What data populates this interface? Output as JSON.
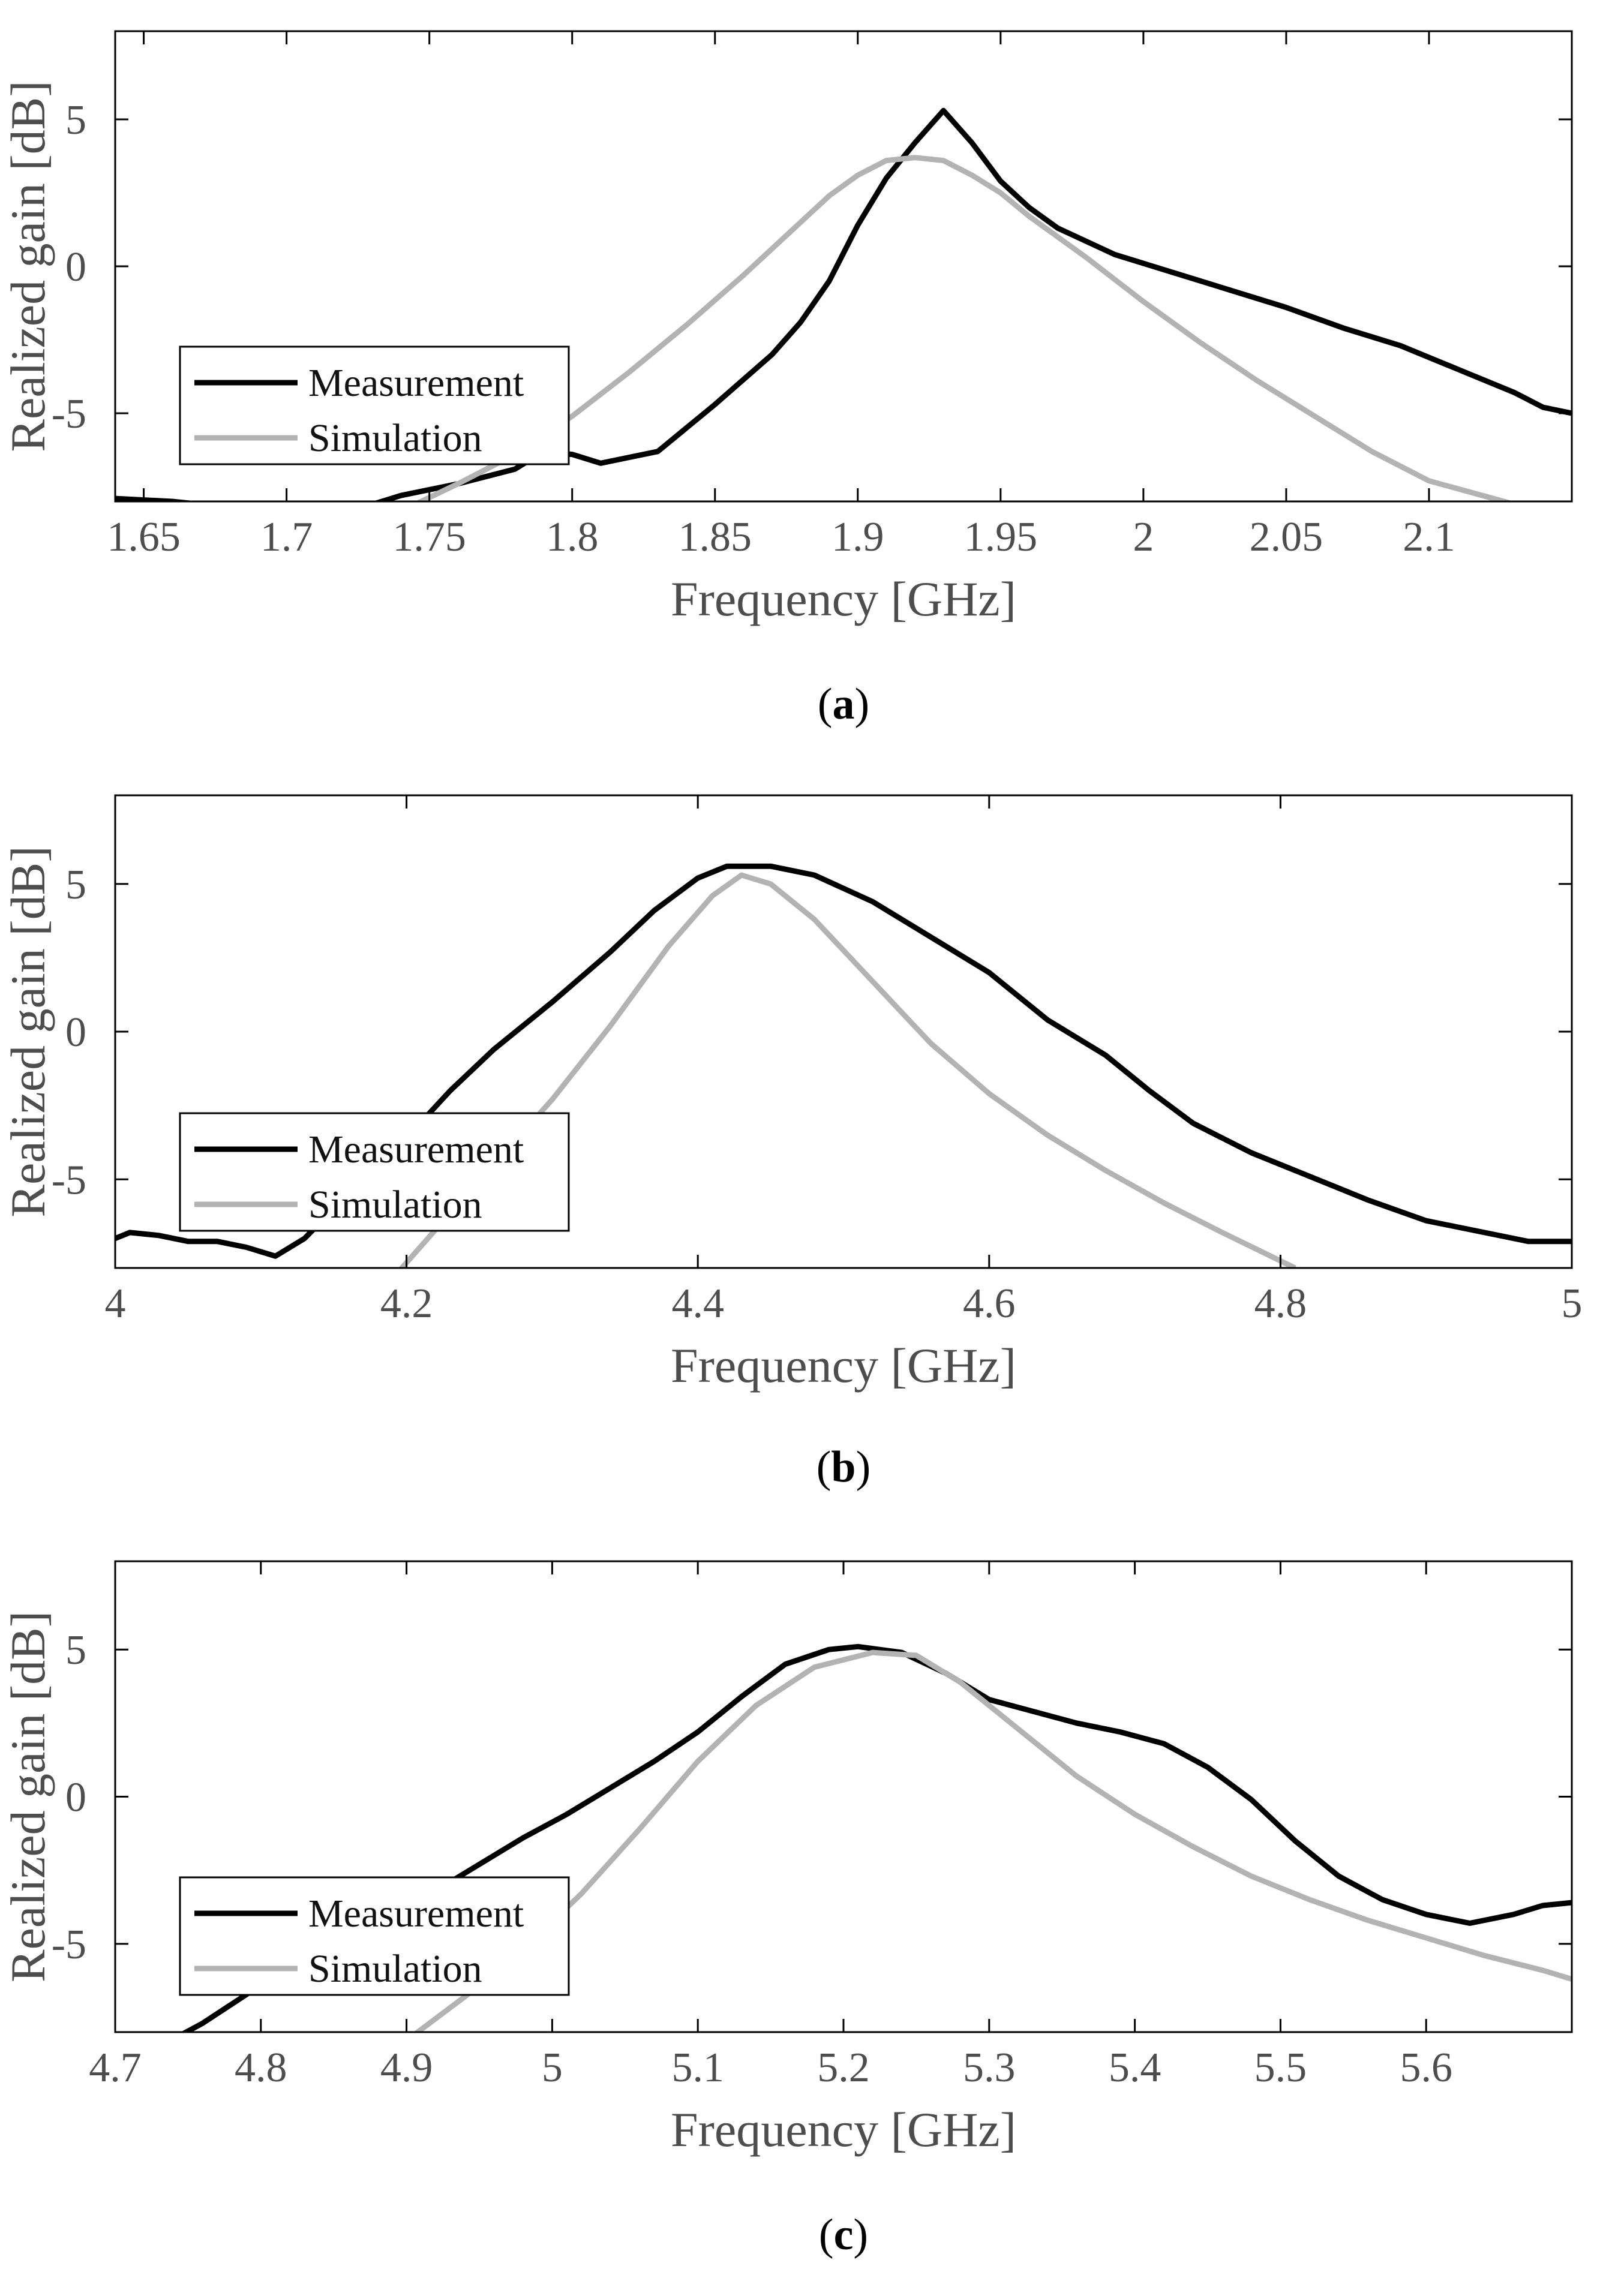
{
  "colors": {
    "measurement": "#000000",
    "simulation": "#b3b3b3",
    "axes": "#000000",
    "tick_text": "#4d4d4d"
  },
  "chart_data": [
    {
      "type": "line",
      "caption_open": "(",
      "caption_letter": "a",
      "caption_close": ")",
      "xlabel": "Frequency [GHz]",
      "ylabel": "Realized gain [dB]",
      "xlim": [
        1.64,
        2.15
      ],
      "ylim": [
        -8,
        8
      ],
      "xticks": [
        1.65,
        1.7,
        1.75,
        1.8,
        1.85,
        1.9,
        1.95,
        2,
        2.05,
        2.1
      ],
      "xtick_labels": [
        "1.65",
        "1.7",
        "1.75",
        "1.8",
        "1.85",
        "1.9",
        "1.95",
        "2",
        "2.05",
        "2.1"
      ],
      "yticks": [
        -5,
        0,
        5
      ],
      "ytick_labels": [
        "-5",
        "0",
        "5"
      ],
      "legend": [
        "Measurement",
        "Simulation"
      ],
      "legend_position": "lower-left",
      "series": [
        {
          "name": "Measurement",
          "segments": [
            [
              [
                1.64,
                -7.9
              ],
              [
                1.66,
                -8.0
              ],
              [
                1.67,
                -8.1
              ]
            ],
            [
              [
                1.73,
                -8.1
              ],
              [
                1.74,
                -7.8
              ],
              [
                1.76,
                -7.4
              ],
              [
                1.78,
                -6.9
              ],
              [
                1.79,
                -6.3
              ],
              [
                1.8,
                -6.4
              ],
              [
                1.81,
                -6.7
              ],
              [
                1.83,
                -6.3
              ],
              [
                1.85,
                -4.7
              ],
              [
                1.87,
                -3.0
              ],
              [
                1.88,
                -1.9
              ],
              [
                1.89,
                -0.5
              ],
              [
                1.9,
                1.4
              ],
              [
                1.91,
                3.0
              ],
              [
                1.92,
                4.2
              ],
              [
                1.93,
                5.3
              ],
              [
                1.94,
                4.2
              ],
              [
                1.95,
                2.9
              ],
              [
                1.96,
                2.0
              ],
              [
                1.97,
                1.3
              ],
              [
                1.99,
                0.4
              ],
              [
                2.01,
                -0.2
              ],
              [
                2.03,
                -0.8
              ],
              [
                2.05,
                -1.4
              ],
              [
                2.07,
                -2.1
              ],
              [
                2.09,
                -2.7
              ],
              [
                2.11,
                -3.5
              ],
              [
                2.13,
                -4.3
              ],
              [
                2.14,
                -4.8
              ],
              [
                2.15,
                -5.0
              ]
            ]
          ]
        },
        {
          "name": "Simulation",
          "segments": [
            [
              [
                1.745,
                -8.1
              ],
              [
                1.76,
                -7.4
              ],
              [
                1.78,
                -6.4
              ],
              [
                1.8,
                -5.1
              ],
              [
                1.82,
                -3.6
              ],
              [
                1.84,
                -2.0
              ],
              [
                1.86,
                -0.3
              ],
              [
                1.88,
                1.5
              ],
              [
                1.89,
                2.4
              ],
              [
                1.9,
                3.1
              ],
              [
                1.91,
                3.6
              ],
              [
                1.92,
                3.7
              ],
              [
                1.93,
                3.6
              ],
              [
                1.94,
                3.1
              ],
              [
                1.95,
                2.5
              ],
              [
                1.96,
                1.7
              ],
              [
                1.98,
                0.3
              ],
              [
                2.0,
                -1.2
              ],
              [
                2.02,
                -2.6
              ],
              [
                2.04,
                -3.9
              ],
              [
                2.06,
                -5.1
              ],
              [
                2.08,
                -6.3
              ],
              [
                2.1,
                -7.3
              ],
              [
                2.13,
                -8.1
              ]
            ]
          ]
        }
      ]
    },
    {
      "type": "line",
      "caption_open": "(",
      "caption_letter": "b",
      "caption_close": ")",
      "xlabel": "Frequency [GHz]",
      "ylabel": "Realized gain [dB]",
      "xlim": [
        4.0,
        5.0
      ],
      "ylim": [
        -8,
        8
      ],
      "xticks": [
        4.0,
        4.2,
        4.4,
        4.6,
        4.8,
        5.0
      ],
      "xtick_labels": [
        "4",
        "4.2",
        "4.4",
        "4.6",
        "4.8",
        "5"
      ],
      "yticks": [
        -5,
        0,
        5
      ],
      "ytick_labels": [
        "-5",
        "0",
        "5"
      ],
      "legend": [
        "Measurement",
        "Simulation"
      ],
      "legend_position": "lower-left",
      "series": [
        {
          "name": "Measurement",
          "segments": [
            [
              [
                4.0,
                -7.0
              ],
              [
                4.01,
                -6.8
              ],
              [
                4.03,
                -6.9
              ],
              [
                4.05,
                -7.1
              ],
              [
                4.07,
                -7.1
              ],
              [
                4.09,
                -7.3
              ],
              [
                4.11,
                -7.6
              ],
              [
                4.13,
                -7.0
              ],
              [
                4.15,
                -6.0
              ],
              [
                4.17,
                -4.9
              ],
              [
                4.2,
                -3.6
              ],
              [
                4.23,
                -2.0
              ],
              [
                4.26,
                -0.6
              ],
              [
                4.3,
                1.0
              ],
              [
                4.34,
                2.7
              ],
              [
                4.37,
                4.1
              ],
              [
                4.4,
                5.2
              ],
              [
                4.42,
                5.6
              ],
              [
                4.45,
                5.6
              ],
              [
                4.48,
                5.3
              ],
              [
                4.52,
                4.4
              ],
              [
                4.56,
                3.2
              ],
              [
                4.6,
                2.0
              ],
              [
                4.64,
                0.4
              ],
              [
                4.68,
                -0.8
              ],
              [
                4.71,
                -2.0
              ],
              [
                4.74,
                -3.1
              ],
              [
                4.78,
                -4.1
              ],
              [
                4.82,
                -4.9
              ],
              [
                4.86,
                -5.7
              ],
              [
                4.9,
                -6.4
              ],
              [
                4.94,
                -6.8
              ],
              [
                4.97,
                -7.1
              ],
              [
                5.0,
                -7.1
              ]
            ]
          ]
        },
        {
          "name": "Simulation",
          "segments": [
            [
              [
                4.195,
                -8.1
              ],
              [
                4.22,
                -6.7
              ],
              [
                4.26,
                -4.5
              ],
              [
                4.3,
                -2.3
              ],
              [
                4.34,
                0.2
              ],
              [
                4.38,
                2.9
              ],
              [
                4.41,
                4.6
              ],
              [
                4.43,
                5.3
              ],
              [
                4.45,
                5.0
              ],
              [
                4.48,
                3.8
              ],
              [
                4.52,
                1.7
              ],
              [
                4.56,
                -0.4
              ],
              [
                4.6,
                -2.1
              ],
              [
                4.64,
                -3.5
              ],
              [
                4.68,
                -4.7
              ],
              [
                4.72,
                -5.8
              ],
              [
                4.76,
                -6.8
              ],
              [
                4.81,
                -8.0
              ]
            ]
          ]
        }
      ]
    },
    {
      "type": "line",
      "caption_open": "(",
      "caption_letter": "c",
      "caption_close": ")",
      "xlabel": "Frequency [GHz]",
      "ylabel": "Realized gain [dB]",
      "xlim": [
        4.7,
        5.7
      ],
      "ylim": [
        -8,
        8
      ],
      "xticks": [
        4.7,
        4.8,
        4.9,
        5.0,
        5.1,
        5.2,
        5.3,
        5.4,
        5.5,
        5.6
      ],
      "xtick_labels": [
        "4.7",
        "4.8",
        "4.9",
        "5",
        "5.1",
        "5.2",
        "5.3",
        "5.4",
        "5.5",
        "5.6"
      ],
      "yticks": [
        -5,
        0,
        5
      ],
      "ytick_labels": [
        "-5",
        "0",
        "5"
      ],
      "legend": [
        "Measurement",
        "Simulation"
      ],
      "legend_position": "lower-left",
      "series": [
        {
          "name": "Measurement",
          "segments": [
            [
              [
                4.745,
                -8.1
              ],
              [
                4.76,
                -7.7
              ],
              [
                4.8,
                -6.4
              ],
              [
                4.84,
                -5.2
              ],
              [
                4.88,
                -4.1
              ],
              [
                4.92,
                -3.2
              ],
              [
                4.95,
                -2.3
              ],
              [
                4.98,
                -1.4
              ],
              [
                5.01,
                -0.6
              ],
              [
                5.04,
                0.3
              ],
              [
                5.07,
                1.2
              ],
              [
                5.1,
                2.2
              ],
              [
                5.13,
                3.4
              ],
              [
                5.16,
                4.5
              ],
              [
                5.19,
                5.0
              ],
              [
                5.21,
                5.1
              ],
              [
                5.24,
                4.9
              ],
              [
                5.27,
                4.2
              ],
              [
                5.3,
                3.3
              ],
              [
                5.33,
                2.9
              ],
              [
                5.36,
                2.5
              ],
              [
                5.39,
                2.2
              ],
              [
                5.42,
                1.8
              ],
              [
                5.45,
                1.0
              ],
              [
                5.48,
                -0.1
              ],
              [
                5.51,
                -1.5
              ],
              [
                5.54,
                -2.7
              ],
              [
                5.57,
                -3.5
              ],
              [
                5.6,
                -4.0
              ],
              [
                5.63,
                -4.3
              ],
              [
                5.66,
                -4.0
              ],
              [
                5.68,
                -3.7
              ],
              [
                5.7,
                -3.6
              ]
            ]
          ]
        },
        {
          "name": "Simulation",
          "segments": [
            [
              [
                4.905,
                -8.1
              ],
              [
                4.94,
                -6.8
              ],
              [
                4.98,
                -5.2
              ],
              [
                5.02,
                -3.3
              ],
              [
                5.06,
                -1.1
              ],
              [
                5.1,
                1.2
              ],
              [
                5.14,
                3.1
              ],
              [
                5.18,
                4.4
              ],
              [
                5.22,
                4.9
              ],
              [
                5.25,
                4.8
              ],
              [
                5.28,
                3.9
              ],
              [
                5.32,
                2.3
              ],
              [
                5.36,
                0.7
              ],
              [
                5.4,
                -0.6
              ],
              [
                5.44,
                -1.7
              ],
              [
                5.48,
                -2.7
              ],
              [
                5.52,
                -3.5
              ],
              [
                5.56,
                -4.2
              ],
              [
                5.6,
                -4.8
              ],
              [
                5.64,
                -5.4
              ],
              [
                5.68,
                -5.9
              ],
              [
                5.7,
                -6.2
              ]
            ]
          ]
        }
      ]
    }
  ]
}
